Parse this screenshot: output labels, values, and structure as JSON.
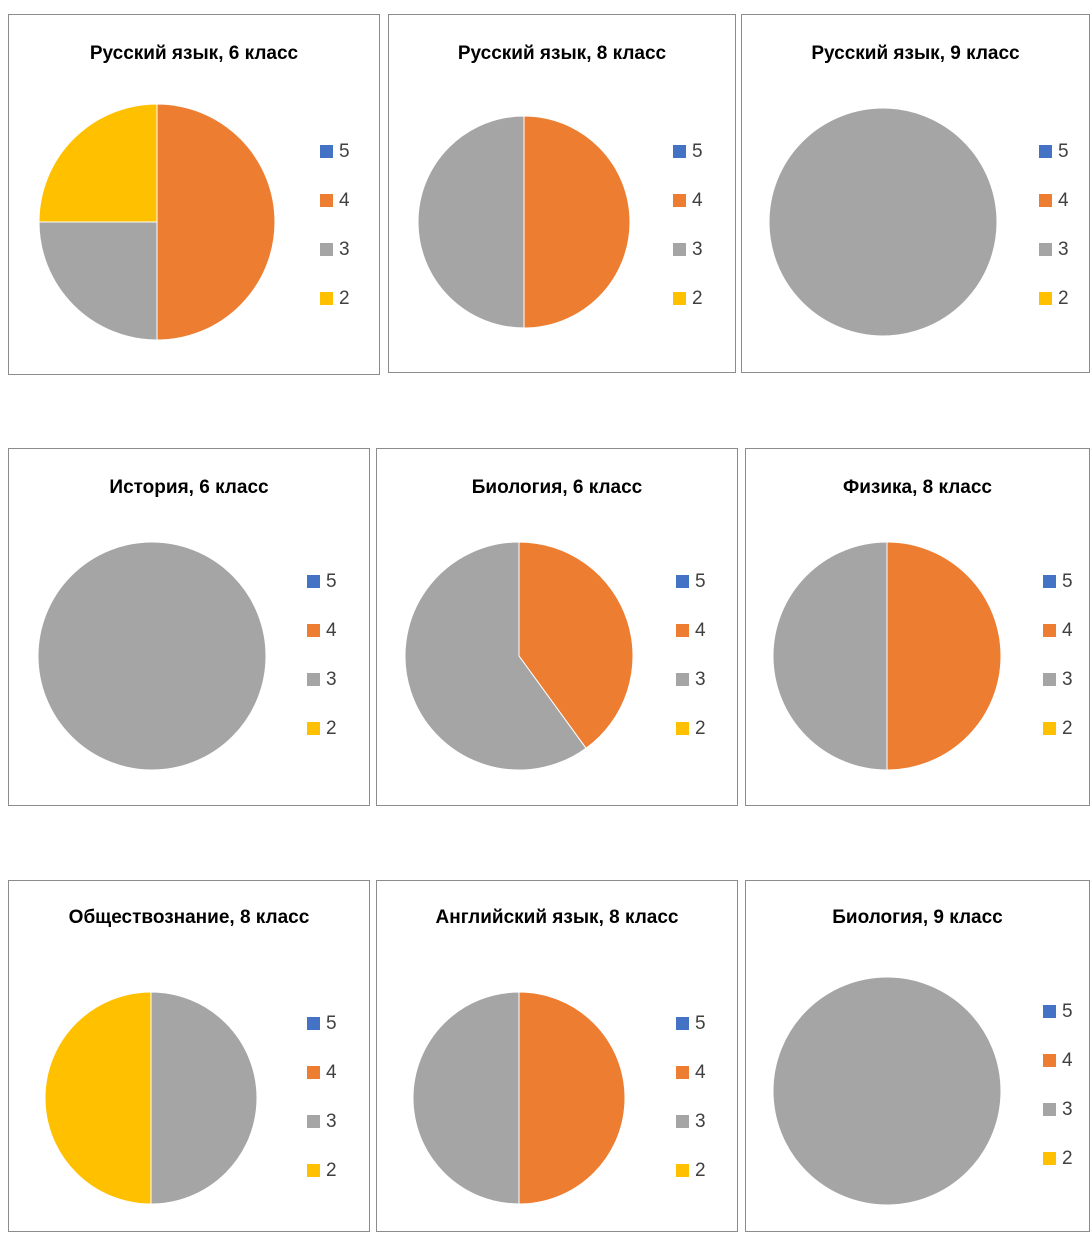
{
  "legend_labels": [
    "5",
    "4",
    "3",
    "2"
  ],
  "colors": {
    "5": "#4472C4",
    "4": "#ED7D31",
    "3": "#A5A5A5",
    "2": "#FFC000"
  },
  "chart_data": [
    {
      "type": "pie",
      "title": "Русский язык, 6 класс",
      "categories": [
        "5",
        "4",
        "3",
        "2"
      ],
      "values": [
        0,
        2,
        1,
        1
      ],
      "legend": "right"
    },
    {
      "type": "pie",
      "title": "Русский язык, 8 класс",
      "categories": [
        "5",
        "4",
        "3",
        "2"
      ],
      "values": [
        0,
        1,
        1,
        0
      ],
      "legend": "right"
    },
    {
      "type": "pie",
      "title": "Русский язык, 9 класс",
      "categories": [
        "5",
        "4",
        "3",
        "2"
      ],
      "values": [
        0,
        0,
        1,
        0
      ],
      "legend": "right"
    },
    {
      "type": "pie",
      "title": "История, 6 класс",
      "categories": [
        "5",
        "4",
        "3",
        "2"
      ],
      "values": [
        0,
        0,
        1,
        0
      ],
      "legend": "right"
    },
    {
      "type": "pie",
      "title": "Биология, 6 класс",
      "categories": [
        "5",
        "4",
        "3",
        "2"
      ],
      "values": [
        0,
        2,
        3,
        0
      ],
      "legend": "right"
    },
    {
      "type": "pie",
      "title": "Физика, 8 класс",
      "categories": [
        "5",
        "4",
        "3",
        "2"
      ],
      "values": [
        0,
        1,
        1,
        0
      ],
      "legend": "right"
    },
    {
      "type": "pie",
      "title": "Обществознание, 8 класс",
      "categories": [
        "5",
        "4",
        "3",
        "2"
      ],
      "values": [
        0,
        0,
        1,
        1
      ],
      "legend": "right"
    },
    {
      "type": "pie",
      "title": "Английский язык, 8 класс",
      "categories": [
        "5",
        "4",
        "3",
        "2"
      ],
      "values": [
        0,
        1,
        1,
        0
      ],
      "legend": "right"
    },
    {
      "type": "pie",
      "title": "Биология, 9 класс",
      "categories": [
        "5",
        "4",
        "3",
        "2"
      ],
      "values": [
        0,
        0,
        1,
        0
      ],
      "legend": "right"
    }
  ]
}
